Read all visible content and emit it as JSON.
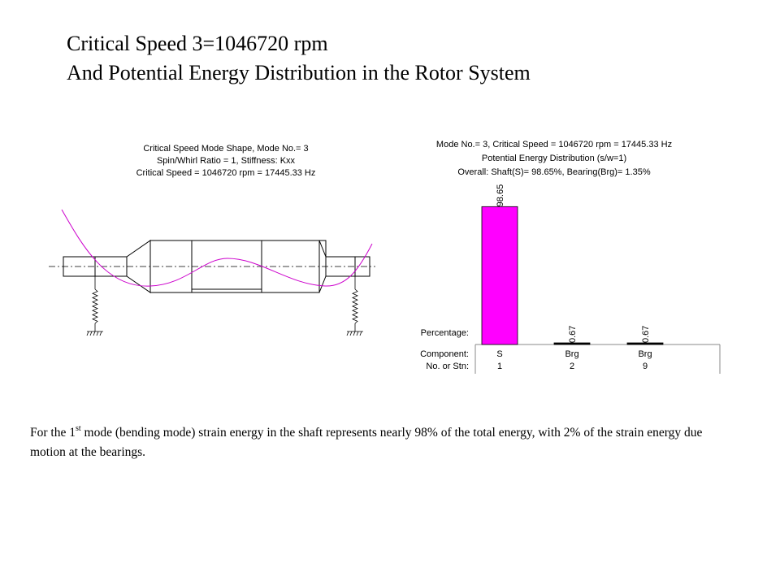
{
  "title": {
    "line1": "Critical Speed 3=1046720 rpm",
    "line2": "And Potential Energy Distribution in the Rotor System"
  },
  "mode_shape": {
    "header": [
      "Critical Speed Mode Shape, Mode No.= 3",
      "Spin/Whirl Ratio = 1, Stiffness: Kxx",
      "Critical Speed = 1046720 rpm = 17445.33 Hz"
    ],
    "curve_color": "#cc00cc"
  },
  "chart_data": {
    "type": "bar",
    "title_lines": [
      "Mode No.= 3, Critical Speed = 1046720 rpm = 17445.33 Hz",
      "Potential Energy Distribution (s/w=1)",
      "Overall: Shaft(S)= 98.65%, Bearing(Brg)= 1.35%"
    ],
    "row_labels": {
      "percentage": "Percentage:",
      "component": "Component:",
      "station": "No. or Stn:"
    },
    "categories": [
      "S",
      "Brg",
      "Brg"
    ],
    "stations": [
      "1",
      "2",
      "9"
    ],
    "values": [
      98.65,
      0.67,
      0.67
    ],
    "value_labels": [
      "98.65",
      "0.67",
      "0.67"
    ],
    "colors": [
      "#ff00ff",
      "#000000",
      "#000000"
    ],
    "ylim": [
      0,
      100
    ]
  },
  "caption": {
    "pre": "For the 1",
    "sup": "st",
    "post": "  mode (bending mode) strain energy in the shaft represents nearly 98% of the total energy, with 2% of the strain energy due motion at the bearings."
  }
}
